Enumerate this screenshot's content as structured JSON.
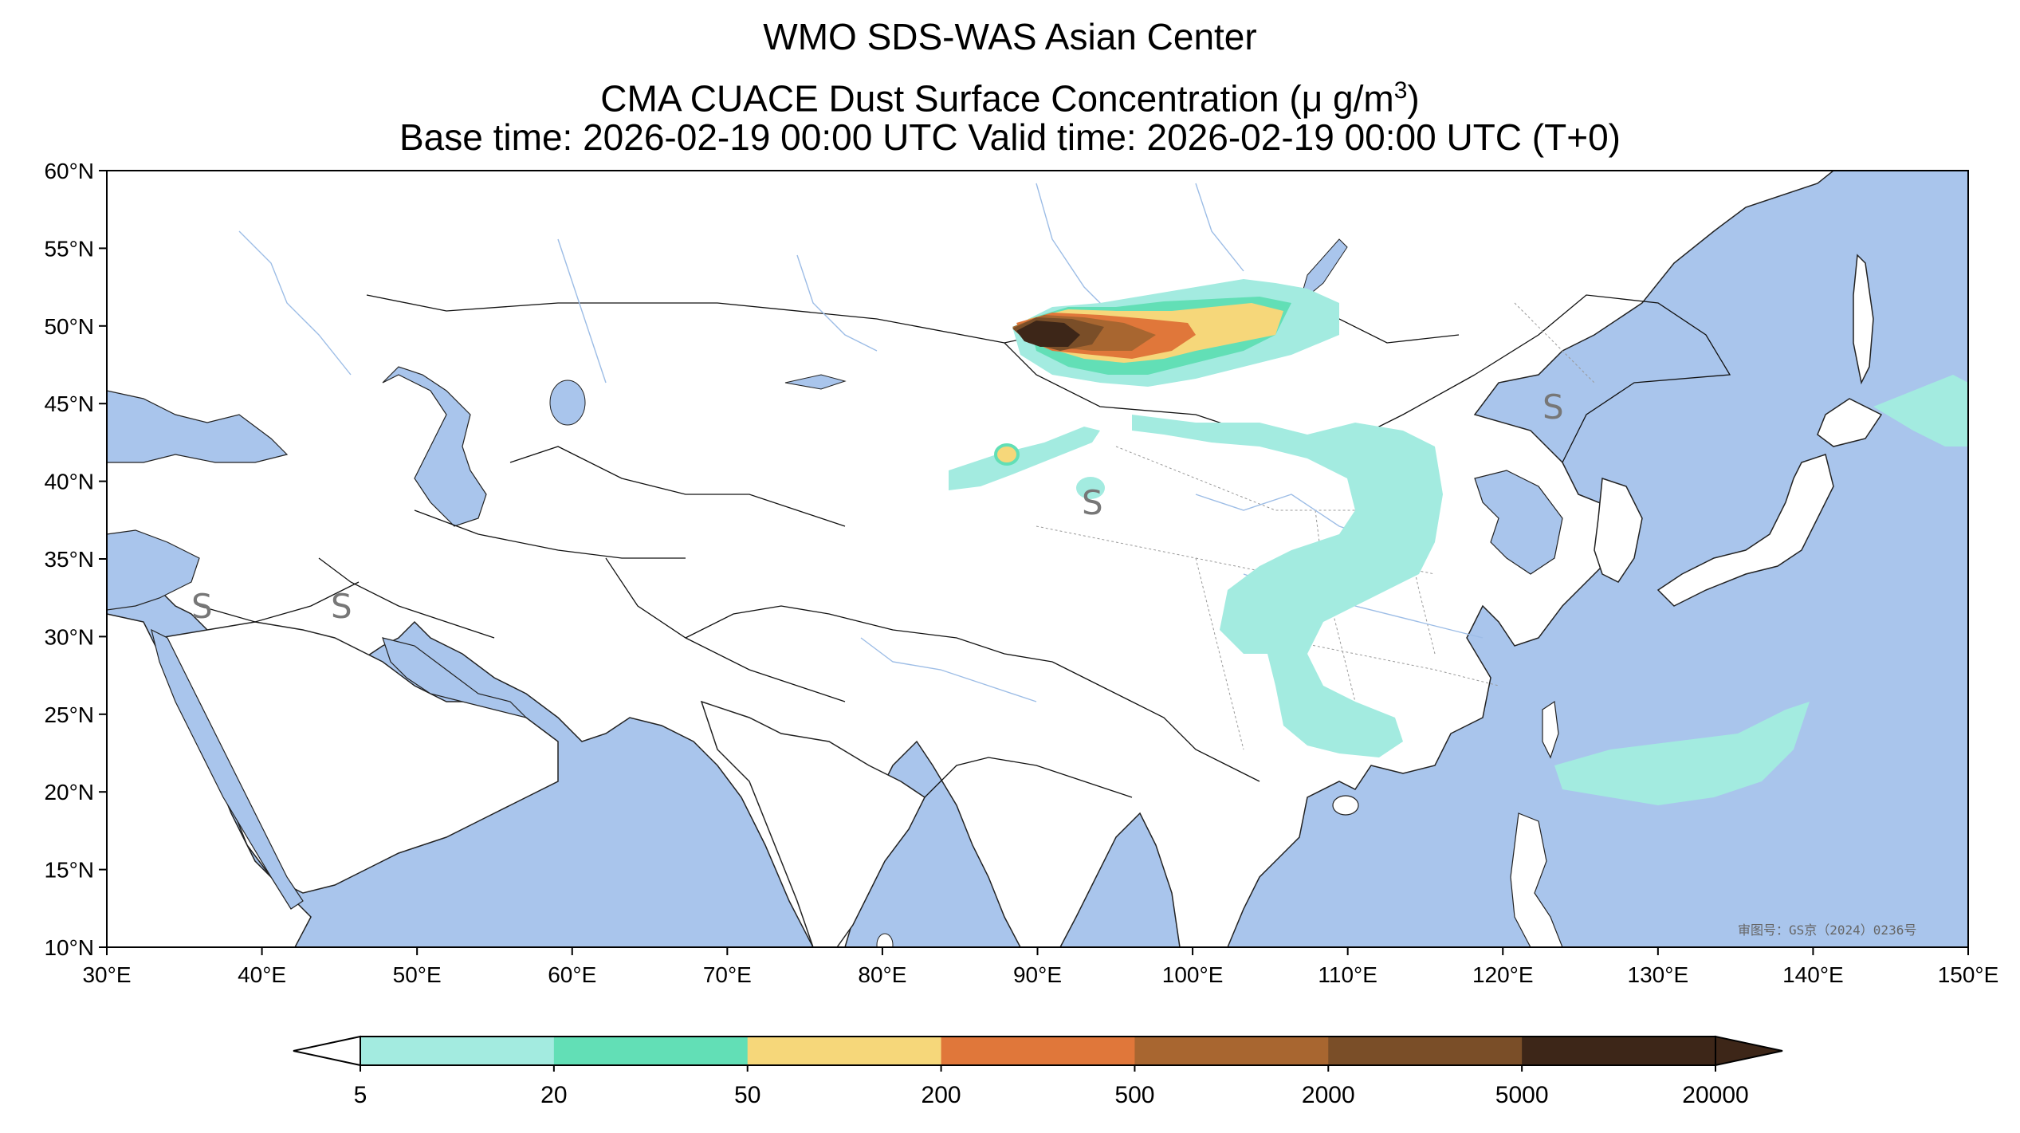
{
  "title": {
    "line1": "WMO SDS-WAS Asian Center",
    "line2_prefix": "CMA CUACE Dust Surface Concentration (",
    "line2_unit": "μ g/m",
    "line2_sup": "3",
    "line2_suffix": ")",
    "line3": "Base time: 2026-02-19 00:00 UTC Valid time: 2026-02-19 00:00 UTC (T+0)"
  },
  "map": {
    "lon_range": [
      30,
      150
    ],
    "lat_range": [
      10,
      60
    ],
    "lon_ticks": [
      "30°E",
      "40°E",
      "50°E",
      "60°E",
      "70°E",
      "80°E",
      "90°E",
      "100°E",
      "110°E",
      "120°E",
      "130°E",
      "140°E",
      "150°E"
    ],
    "lat_ticks": [
      "60°N",
      "55°N",
      "50°N",
      "45°N",
      "40°N",
      "35°N",
      "30°N",
      "25°N",
      "20°N",
      "15°N",
      "10°N"
    ],
    "ocean_color": "#a9c5ec",
    "land_color": "#ffffff",
    "station_marker": "S",
    "watermark": "审图号：GS京（2024）0236号"
  },
  "colorbar": {
    "levels": [
      "5",
      "20",
      "50",
      "200",
      "500",
      "2000",
      "5000",
      "20000"
    ],
    "colors": [
      "#a3ebe0",
      "#62dfb6",
      "#f6d77a",
      "#e0773a",
      "#a86630",
      "#7a4e28",
      "#3d2618"
    ]
  }
}
